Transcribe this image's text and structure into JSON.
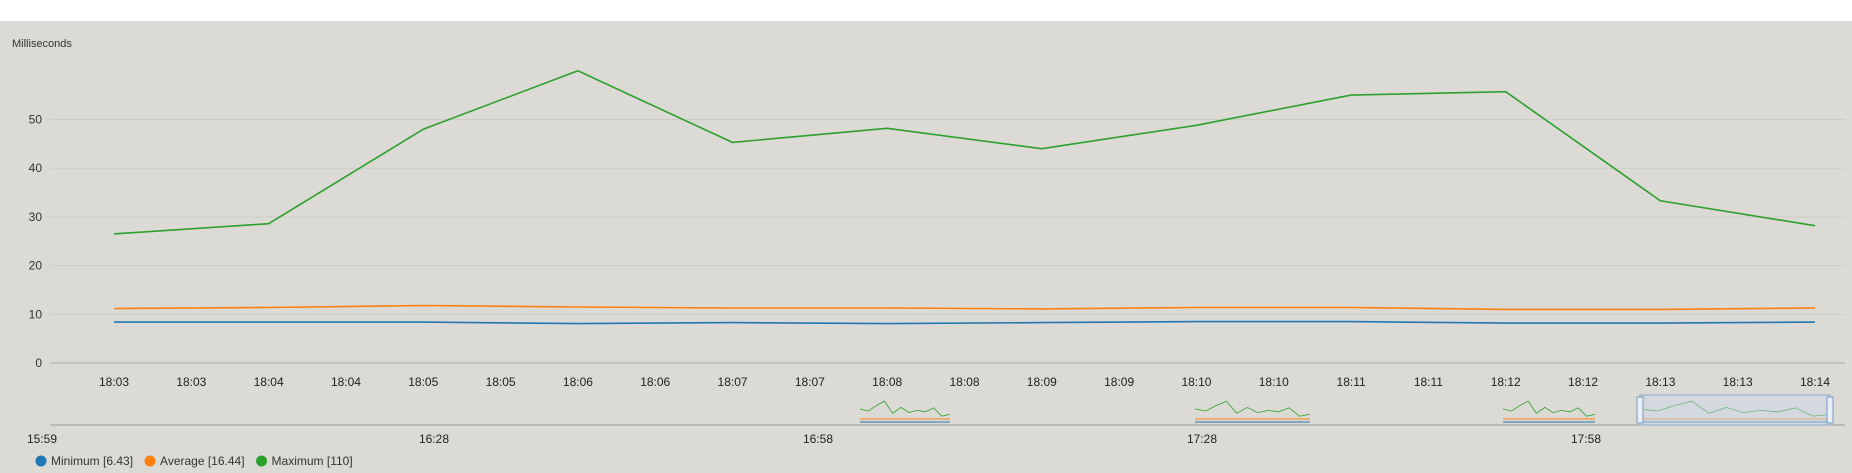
{
  "chart_data": {
    "type": "line",
    "ylabel": "Milliseconds",
    "ylim": [
      0,
      60
    ],
    "yticks": [
      0,
      10,
      20,
      30,
      40,
      50
    ],
    "x": [
      "18:03",
      "18:04",
      "18:05",
      "18:06",
      "18:07",
      "18:08",
      "18:09",
      "18:10",
      "18:11",
      "18:12",
      "18:13",
      "18:14"
    ],
    "x_tick_labels": [
      "18:03",
      "18:03",
      "18:04",
      "18:04",
      "18:05",
      "18:05",
      "18:06",
      "18:06",
      "18:07",
      "18:07",
      "18:08",
      "18:08",
      "18:09",
      "18:09",
      "18:10",
      "18:10",
      "18:11",
      "18:11",
      "18:12",
      "18:12",
      "18:13",
      "18:13",
      "18:14"
    ],
    "series": [
      {
        "name": "Minimum",
        "legend": "Minimum [6.43]",
        "color": "#1f77b4",
        "values": [
          8.4,
          8.4,
          8.4,
          8.1,
          8.3,
          8.1,
          8.3,
          8.5,
          8.5,
          8.2,
          8.2,
          8.4
        ]
      },
      {
        "name": "Average",
        "legend": "Average [16.44]",
        "color": "#ff7f0e",
        "values": [
          11.2,
          11.4,
          11.8,
          11.5,
          11.3,
          11.3,
          11.1,
          11.4,
          11.4,
          11.0,
          11.0,
          11.3
        ]
      },
      {
        "name": "Maximum",
        "legend": "Maximum [110]",
        "color": "#2ca02c",
        "values": [
          26.5,
          28.6,
          48.0,
          60.0,
          45.3,
          48.2,
          44.0,
          48.8,
          55.0,
          55.7,
          33.3,
          28.2
        ]
      }
    ],
    "grid": true,
    "legend_position": "bottom-left"
  },
  "navigator": {
    "labels": [
      "15:59",
      "16:28",
      "16:58",
      "17:28",
      "17:58"
    ]
  }
}
